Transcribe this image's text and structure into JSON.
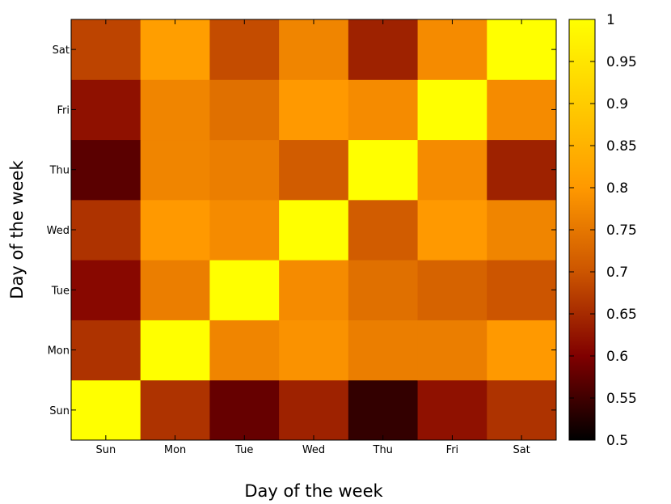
{
  "chart_data": {
    "type": "heatmap",
    "xlabel": "Day of the week",
    "ylabel": "Day of the week",
    "x_categories": [
      "Sun",
      "Mon",
      "Tue",
      "Wed",
      "Thu",
      "Fri",
      "Sat"
    ],
    "y_categories": [
      "Sun",
      "Mon",
      "Tue",
      "Wed",
      "Thu",
      "Fri",
      "Sat"
    ],
    "values": [
      [
        1.0,
        0.66,
        0.58,
        0.64,
        0.54,
        0.62,
        0.66
      ],
      [
        0.66,
        1.0,
        0.77,
        0.79,
        0.76,
        0.76,
        0.8
      ],
      [
        0.61,
        0.76,
        1.0,
        0.78,
        0.74,
        0.72,
        0.7
      ],
      [
        0.66,
        0.8,
        0.78,
        1.0,
        0.71,
        0.8,
        0.77
      ],
      [
        0.57,
        0.77,
        0.76,
        0.71,
        1.0,
        0.78,
        0.64
      ],
      [
        0.62,
        0.77,
        0.74,
        0.8,
        0.78,
        1.0,
        0.78
      ],
      [
        0.68,
        0.81,
        0.69,
        0.77,
        0.64,
        0.78,
        1.0
      ]
    ],
    "colorbar": {
      "range": [
        0.5,
        1.0
      ],
      "ticks": [
        "0.5",
        "0.55",
        "0.6",
        "0.65",
        "0.7",
        "0.75",
        "0.8",
        "0.85",
        "0.9",
        "0.95",
        "1"
      ],
      "palette": [
        "#000000",
        "#800000",
        "#cc5500",
        "#ff9900",
        "#ffcc00",
        "#ffff00"
      ]
    },
    "grid": false
  }
}
